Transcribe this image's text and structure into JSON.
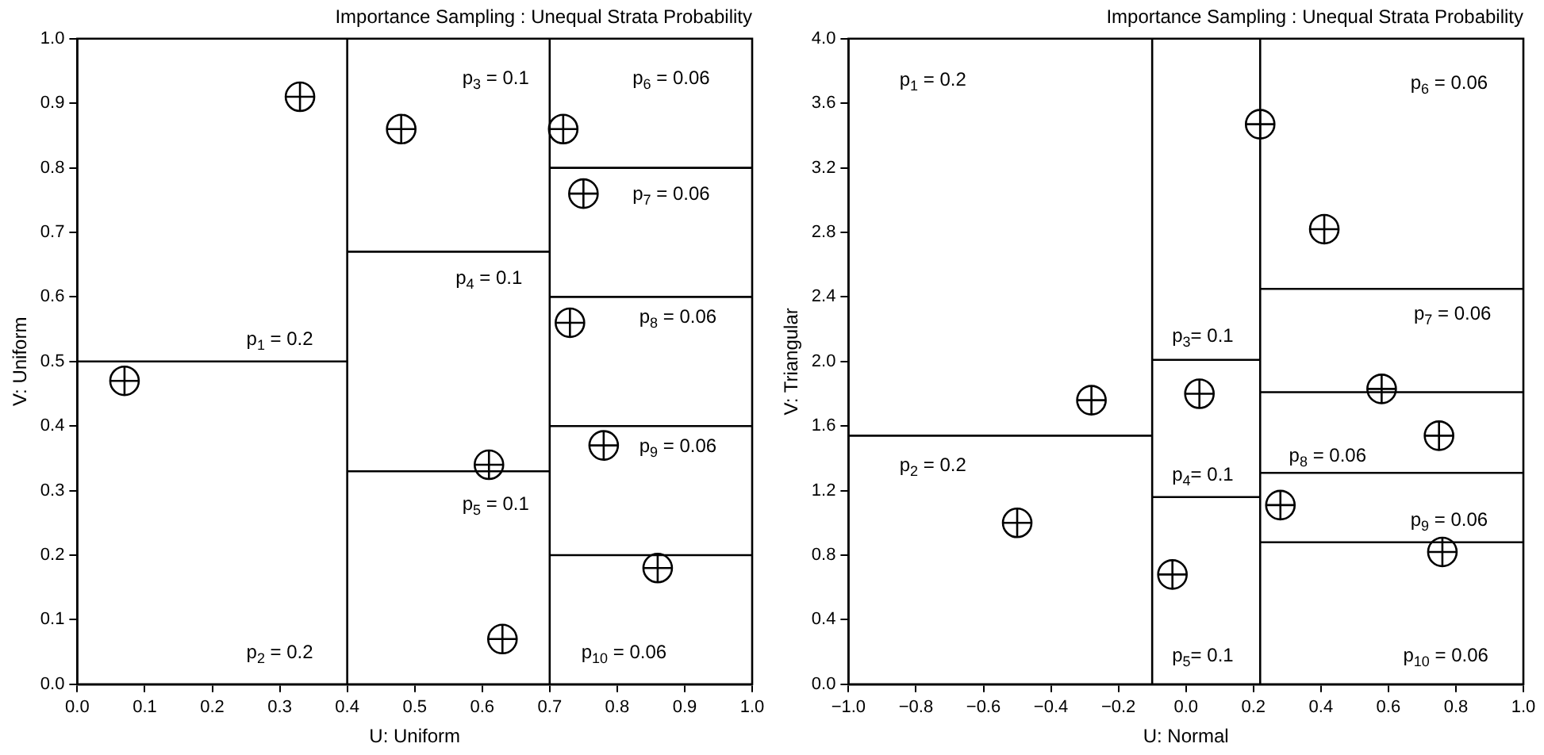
{
  "chart_data": [
    {
      "type": "scatter",
      "title": "Importance Sampling : Unequal Strata Probability",
      "xlabel": "U: Uniform",
      "ylabel": "V: Uniform",
      "xlim": [
        0,
        1
      ],
      "ylim": [
        0,
        1
      ],
      "xticks": [
        {
          "value": 0,
          "label": "0.0"
        },
        0.1,
        0.2,
        0.3,
        0.4,
        0.5,
        0.6,
        0.7,
        0.8,
        0.9,
        {
          "value": 1,
          "label": "1.0"
        }
      ],
      "yticks": [
        {
          "value": 0,
          "label": "0.0"
        },
        0.1,
        0.2,
        0.3,
        0.4,
        0.5,
        0.6,
        0.7,
        0.8,
        0.9,
        {
          "value": 1,
          "label": "1.0"
        }
      ],
      "grid": false,
      "legend": false,
      "marker": "circle",
      "series": [
        {
          "color": "#000000",
          "x": [
            0.07,
            0.33,
            0.48,
            0.72,
            0.75,
            0.73,
            0.78,
            0.61,
            0.63,
            0.86
          ],
          "values": [
            0.47,
            0.91,
            0.86,
            0.86,
            0.76,
            0.56,
            0.37,
            0.34,
            0.07,
            0.18
          ]
        },
        {
          "type": "line",
          "marker": "none",
          "color": "#000000",
          "x": [
            0.4,
            0.4
          ],
          "values": [
            0,
            1
          ]
        },
        {
          "type": "line",
          "marker": "none",
          "color": "#000000",
          "x": [
            0.7,
            0.7
          ],
          "values": [
            0,
            1
          ]
        },
        {
          "type": "line",
          "marker": "none",
          "color": "#000000",
          "x": [
            0,
            0.4
          ],
          "values": [
            0.5,
            0.5
          ]
        },
        {
          "type": "line",
          "marker": "none",
          "color": "#000000",
          "x": [
            0.4,
            0.7
          ],
          "values": [
            0.67,
            0.67
          ]
        },
        {
          "type": "line",
          "marker": "none",
          "color": "#000000",
          "x": [
            0.4,
            0.7
          ],
          "values": [
            0.33,
            0.33
          ]
        },
        {
          "type": "line",
          "marker": "none",
          "color": "#000000",
          "x": [
            0.7,
            1
          ],
          "values": [
            0.8,
            0.8
          ]
        },
        {
          "type": "line",
          "marker": "none",
          "color": "#000000",
          "x": [
            0.7,
            1
          ],
          "values": [
            0.6,
            0.6
          ]
        },
        {
          "type": "line",
          "marker": "none",
          "color": "#000000",
          "x": [
            0.7,
            1
          ],
          "values": [
            0.4,
            0.4
          ]
        },
        {
          "type": "line",
          "marker": "none",
          "color": "#000000",
          "x": [
            0.7,
            1
          ],
          "values": [
            0.2,
            0.2
          ]
        }
      ],
      "annotations": [
        "p$_{1}$ = 0.2",
        "p$_{2}$ = 0.2",
        "p$_{3}$ = 0.1",
        "p$_{4}$ = 0.1",
        "p$_{5}$ = 0.1",
        "p$_{6}$ = 0.06",
        "p$_{7}$ = 0.06",
        "p$_{8}$ = 0.06",
        "p$_{9}$ = 0.06",
        "p$_{10}$ = 0.06"
      ]
    },
    {
      "type": "scatter",
      "title": "Importance Sampling : Unequal Strata Probability",
      "xlabel": "U: Normal",
      "ylabel": "V: Triangular",
      "xlim": [
        -1,
        1
      ],
      "ylim": [
        0,
        4
      ],
      "xticks": [
        {
          "value": -1,
          "label": "−1.0"
        },
        {
          "value": -0.8,
          "label": "−0.8"
        },
        {
          "value": -0.6,
          "label": "−0.6"
        },
        {
          "value": -0.4,
          "label": "−0.4"
        },
        {
          "value": -0.2,
          "label": "−0.2"
        },
        {
          "value": 0,
          "label": "0.0"
        },
        0.2,
        0.4,
        0.6,
        0.8,
        {
          "value": 1,
          "label": "1.0"
        }
      ],
      "yticks": [
        {
          "value": 0,
          "label": "0.0"
        },
        0.4,
        0.8,
        1.2,
        1.6,
        {
          "value": 2,
          "label": "2.0"
        },
        2.4,
        2.8,
        3.2,
        3.6,
        {
          "value": 4,
          "label": "4.0"
        }
      ],
      "grid": false,
      "legend": false,
      "marker": "circle",
      "series": [
        {
          "color": "#000000",
          "x": [
            -0.28,
            -0.5,
            0.04,
            -0.04,
            0.22,
            0.41,
            0.58,
            0.75,
            0.28,
            0.76
          ],
          "values": [
            1.76,
            1.0,
            1.8,
            0.68,
            3.47,
            2.82,
            1.83,
            1.54,
            1.11,
            0.82
          ]
        },
        {
          "type": "line",
          "marker": "none",
          "color": "#000000",
          "x": [
            -0.1,
            -0.1
          ],
          "values": [
            0,
            4
          ]
        },
        {
          "type": "line",
          "marker": "none",
          "color": "#000000",
          "x": [
            0.22,
            0.22
          ],
          "values": [
            0,
            4
          ]
        },
        {
          "type": "line",
          "marker": "none",
          "color": "#000000",
          "x": [
            -1,
            -0.1
          ],
          "values": [
            1.54,
            1.54
          ]
        },
        {
          "type": "line",
          "marker": "none",
          "color": "#000000",
          "x": [
            -0.1,
            0.22
          ],
          "values": [
            2.01,
            2.01
          ]
        },
        {
          "type": "line",
          "marker": "none",
          "color": "#000000",
          "x": [
            -0.1,
            0.22
          ],
          "values": [
            1.16,
            1.16
          ]
        },
        {
          "type": "line",
          "marker": "none",
          "color": "#000000",
          "x": [
            0.22,
            1
          ],
          "values": [
            2.45,
            2.45
          ]
        },
        {
          "type": "line",
          "marker": "none",
          "color": "#000000",
          "x": [
            0.22,
            1
          ],
          "values": [
            1.81,
            1.81
          ]
        },
        {
          "type": "line",
          "marker": "none",
          "color": "#000000",
          "x": [
            0.22,
            1
          ],
          "values": [
            1.31,
            1.31
          ]
        },
        {
          "type": "line",
          "marker": "none",
          "color": "#000000",
          "x": [
            0.22,
            1
          ],
          "values": [
            0.88,
            0.88
          ]
        }
      ],
      "annotations": [
        "p$_{1}$ = 0.2",
        "p$_{2}$ = 0.2",
        "p$_{3}$= 0.1",
        "p$_{4}$= 0.1",
        "p$_{5}$= 0.1",
        "p$_{6}$ = 0.06",
        "p$_{7}$ = 0.06",
        "p$_{8}$ = 0.06",
        "p$_{9}$ = 0.06",
        "p$_{10}$ = 0.06"
      ]
    }
  ]
}
